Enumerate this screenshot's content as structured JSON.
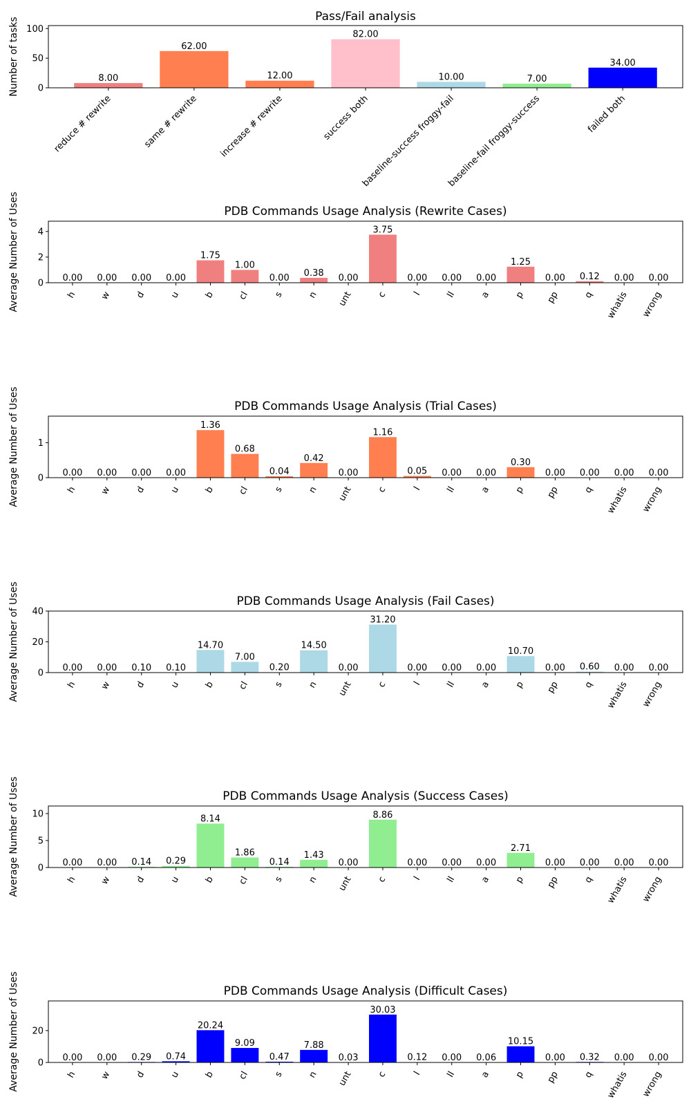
{
  "chart_data": [
    {
      "type": "bar",
      "title": "Pass/Fail analysis",
      "xlabel": "",
      "ylabel": "Number of tasks",
      "ylim": [
        0,
        105
      ],
      "yticks": [
        0,
        50,
        100
      ],
      "categories": [
        "reduce # rewrite",
        "same # rewrite",
        "increase # rewrite",
        "success both",
        "baseline-success froggy-fail",
        "baseline-fail froggy-success",
        "failed both"
      ],
      "values": [
        8,
        62,
        12,
        82,
        10,
        7,
        34
      ],
      "data_labels": [
        "8.00",
        "62.00",
        "12.00",
        "82.00",
        "10.00",
        "7.00",
        "34.00"
      ],
      "colors": [
        "#f08080",
        "#ff7f50",
        "#ff7f50",
        "#ffc0cb",
        "#add8e6",
        "#90ee90",
        "#0000ff"
      ]
    },
    {
      "type": "bar",
      "title": "PDB Commands Usage Analysis (Rewrite Cases)",
      "xlabel": "",
      "ylabel": "Average Number of Uses",
      "ylim": [
        0,
        4.8
      ],
      "yticks": [
        0,
        2,
        4
      ],
      "categories": [
        "h",
        "w",
        "d",
        "u",
        "b",
        "cl",
        "s",
        "n",
        "unt",
        "c",
        "l",
        "ll",
        "a",
        "p",
        "pp",
        "q",
        "whatis",
        "wrong"
      ],
      "values": [
        0,
        0,
        0,
        0,
        1.75,
        1.0,
        0,
        0.38,
        0,
        3.75,
        0,
        0,
        0,
        1.25,
        0,
        0.12,
        0,
        0
      ],
      "data_labels": [
        "0.00",
        "0.00",
        "0.00",
        "0.00",
        "1.75",
        "1.00",
        "0.00",
        "0.38",
        "0.00",
        "3.75",
        "0.00",
        "0.00",
        "0.00",
        "1.25",
        "0.00",
        "0.12",
        "0.00",
        "0.00"
      ],
      "color": "#f08080"
    },
    {
      "type": "bar",
      "title": "PDB Commands Usage Analysis (Trial Cases)",
      "xlabel": "",
      "ylabel": "Average Number of Uses",
      "ylim": [
        0,
        1.76
      ],
      "yticks": [
        0,
        1
      ],
      "categories": [
        "h",
        "w",
        "d",
        "u",
        "b",
        "cl",
        "s",
        "n",
        "unt",
        "c",
        "l",
        "ll",
        "a",
        "p",
        "pp",
        "q",
        "whatis",
        "wrong"
      ],
      "values": [
        0,
        0,
        0,
        0,
        1.36,
        0.68,
        0.04,
        0.42,
        0,
        1.16,
        0.05,
        0,
        0,
        0.3,
        0,
        0,
        0,
        0
      ],
      "data_labels": [
        "0.00",
        "0.00",
        "0.00",
        "0.00",
        "1.36",
        "0.68",
        "0.04",
        "0.42",
        "0.00",
        "1.16",
        "0.05",
        "0.00",
        "0.00",
        "0.30",
        "0.00",
        "0.00",
        "0.00",
        "0.00"
      ],
      "color": "#ff7f50"
    },
    {
      "type": "bar",
      "title": "PDB Commands Usage Analysis (Fail Cases)",
      "xlabel": "",
      "ylabel": "Average Number of Uses",
      "ylim": [
        0,
        40
      ],
      "yticks": [
        0,
        20,
        40
      ],
      "categories": [
        "h",
        "w",
        "d",
        "u",
        "b",
        "cl",
        "s",
        "n",
        "unt",
        "c",
        "l",
        "ll",
        "a",
        "p",
        "pp",
        "q",
        "whatis",
        "wrong"
      ],
      "values": [
        0,
        0,
        0.1,
        0.1,
        14.7,
        7.0,
        0.2,
        14.5,
        0,
        31.2,
        0,
        0,
        0,
        10.7,
        0,
        0.6,
        0,
        0
      ],
      "data_labels": [
        "0.00",
        "0.00",
        "0.10",
        "0.10",
        "14.70",
        "7.00",
        "0.20",
        "14.50",
        "0.00",
        "31.20",
        "0.00",
        "0.00",
        "0.00",
        "10.70",
        "0.00",
        "0.60",
        "0.00",
        "0.00"
      ],
      "color": "#add8e6"
    },
    {
      "type": "bar",
      "title": "PDB Commands Usage Analysis (Success Cases)",
      "xlabel": "",
      "ylabel": "Average Number of Uses",
      "ylim": [
        0,
        11.4
      ],
      "yticks": [
        0,
        5,
        10
      ],
      "categories": [
        "h",
        "w",
        "d",
        "u",
        "b",
        "cl",
        "s",
        "n",
        "unt",
        "c",
        "l",
        "ll",
        "a",
        "p",
        "pp",
        "q",
        "whatis",
        "wrong"
      ],
      "values": [
        0,
        0,
        0.14,
        0.29,
        8.14,
        1.86,
        0.14,
        1.43,
        0,
        8.86,
        0,
        0,
        0,
        2.71,
        0,
        0,
        0,
        0
      ],
      "data_labels": [
        "0.00",
        "0.00",
        "0.14",
        "0.29",
        "8.14",
        "1.86",
        "0.14",
        "1.43",
        "0.00",
        "8.86",
        "0.00",
        "0.00",
        "0.00",
        "2.71",
        "0.00",
        "0.00",
        "0.00",
        "0.00"
      ],
      "color": "#90ee90"
    },
    {
      "type": "bar",
      "title": "PDB Commands Usage Analysis (Difficult Cases)",
      "xlabel": "",
      "ylabel": "Average Number of Uses",
      "ylim": [
        0,
        38.6
      ],
      "yticks": [
        0,
        20
      ],
      "categories": [
        "h",
        "w",
        "d",
        "u",
        "b",
        "cl",
        "s",
        "n",
        "unt",
        "c",
        "l",
        "ll",
        "a",
        "p",
        "pp",
        "q",
        "whatis",
        "wrong"
      ],
      "values": [
        0,
        0,
        0.29,
        0.74,
        20.24,
        9.09,
        0.47,
        7.88,
        0.03,
        30.03,
        0.12,
        0,
        0.06,
        10.15,
        0,
        0.32,
        0,
        0
      ],
      "data_labels": [
        "0.00",
        "0.00",
        "0.29",
        "0.74",
        "20.24",
        "9.09",
        "0.47",
        "7.88",
        "0.03",
        "30.03",
        "0.12",
        "0.00",
        "0.06",
        "10.15",
        "0.00",
        "0.32",
        "0.00",
        "0.00"
      ],
      "color": "#0000ff"
    }
  ]
}
